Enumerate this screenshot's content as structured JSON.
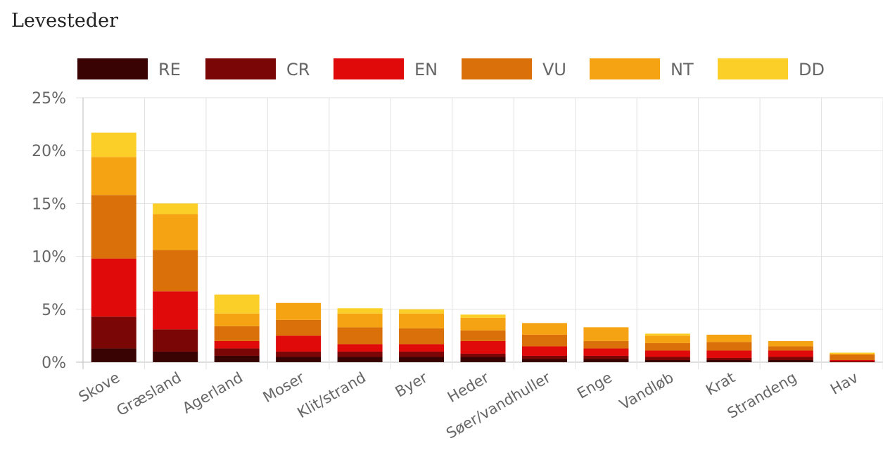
{
  "chart_data": {
    "type": "bar",
    "stacked": true,
    "title": "Levesteder",
    "categories": [
      "Skove",
      "Græsland",
      "Agerland",
      "Moser",
      "Klit/strand",
      "Byer",
      "Heder",
      "Søer/vandhuller",
      "Enge",
      "Vandløb",
      "Krat",
      "Strandeng",
      "Hav"
    ],
    "series": [
      {
        "name": "RE",
        "color": "#3a0303",
        "values": [
          1.3,
          1.0,
          0.6,
          0.5,
          0.5,
          0.5,
          0.5,
          0.3,
          0.3,
          0.2,
          0.2,
          0.2,
          0.0
        ]
      },
      {
        "name": "CR",
        "color": "#7a0606",
        "values": [
          3.0,
          2.1,
          0.7,
          0.5,
          0.5,
          0.5,
          0.3,
          0.3,
          0.3,
          0.3,
          0.2,
          0.3,
          0.1
        ]
      },
      {
        "name": "EN",
        "color": "#e00a0a",
        "values": [
          5.5,
          3.6,
          0.7,
          1.5,
          0.7,
          0.7,
          1.2,
          0.9,
          0.7,
          0.6,
          0.7,
          0.6,
          0.1
        ]
      },
      {
        "name": "VU",
        "color": "#d9700a",
        "values": [
          6.0,
          3.9,
          1.4,
          1.5,
          1.6,
          1.5,
          1.0,
          1.1,
          0.7,
          0.7,
          0.8,
          0.4,
          0.5
        ]
      },
      {
        "name": "NT",
        "color": "#f5a213",
        "values": [
          3.6,
          3.4,
          1.2,
          1.6,
          1.3,
          1.4,
          1.2,
          1.1,
          1.3,
          0.7,
          0.7,
          0.5,
          0.1
        ]
      },
      {
        "name": "DD",
        "color": "#fbcf27",
        "values": [
          2.3,
          1.0,
          1.8,
          0.0,
          0.5,
          0.4,
          0.3,
          0.0,
          0.0,
          0.2,
          0.0,
          0.0,
          0.1
        ]
      }
    ],
    "ylim": [
      0,
      25
    ],
    "yticks": [
      "0%",
      "5%",
      "10%",
      "15%",
      "20%",
      "25%"
    ],
    "ytick_values": [
      0,
      5,
      10,
      15,
      20,
      25
    ],
    "grid": true,
    "legend_position": "top"
  }
}
